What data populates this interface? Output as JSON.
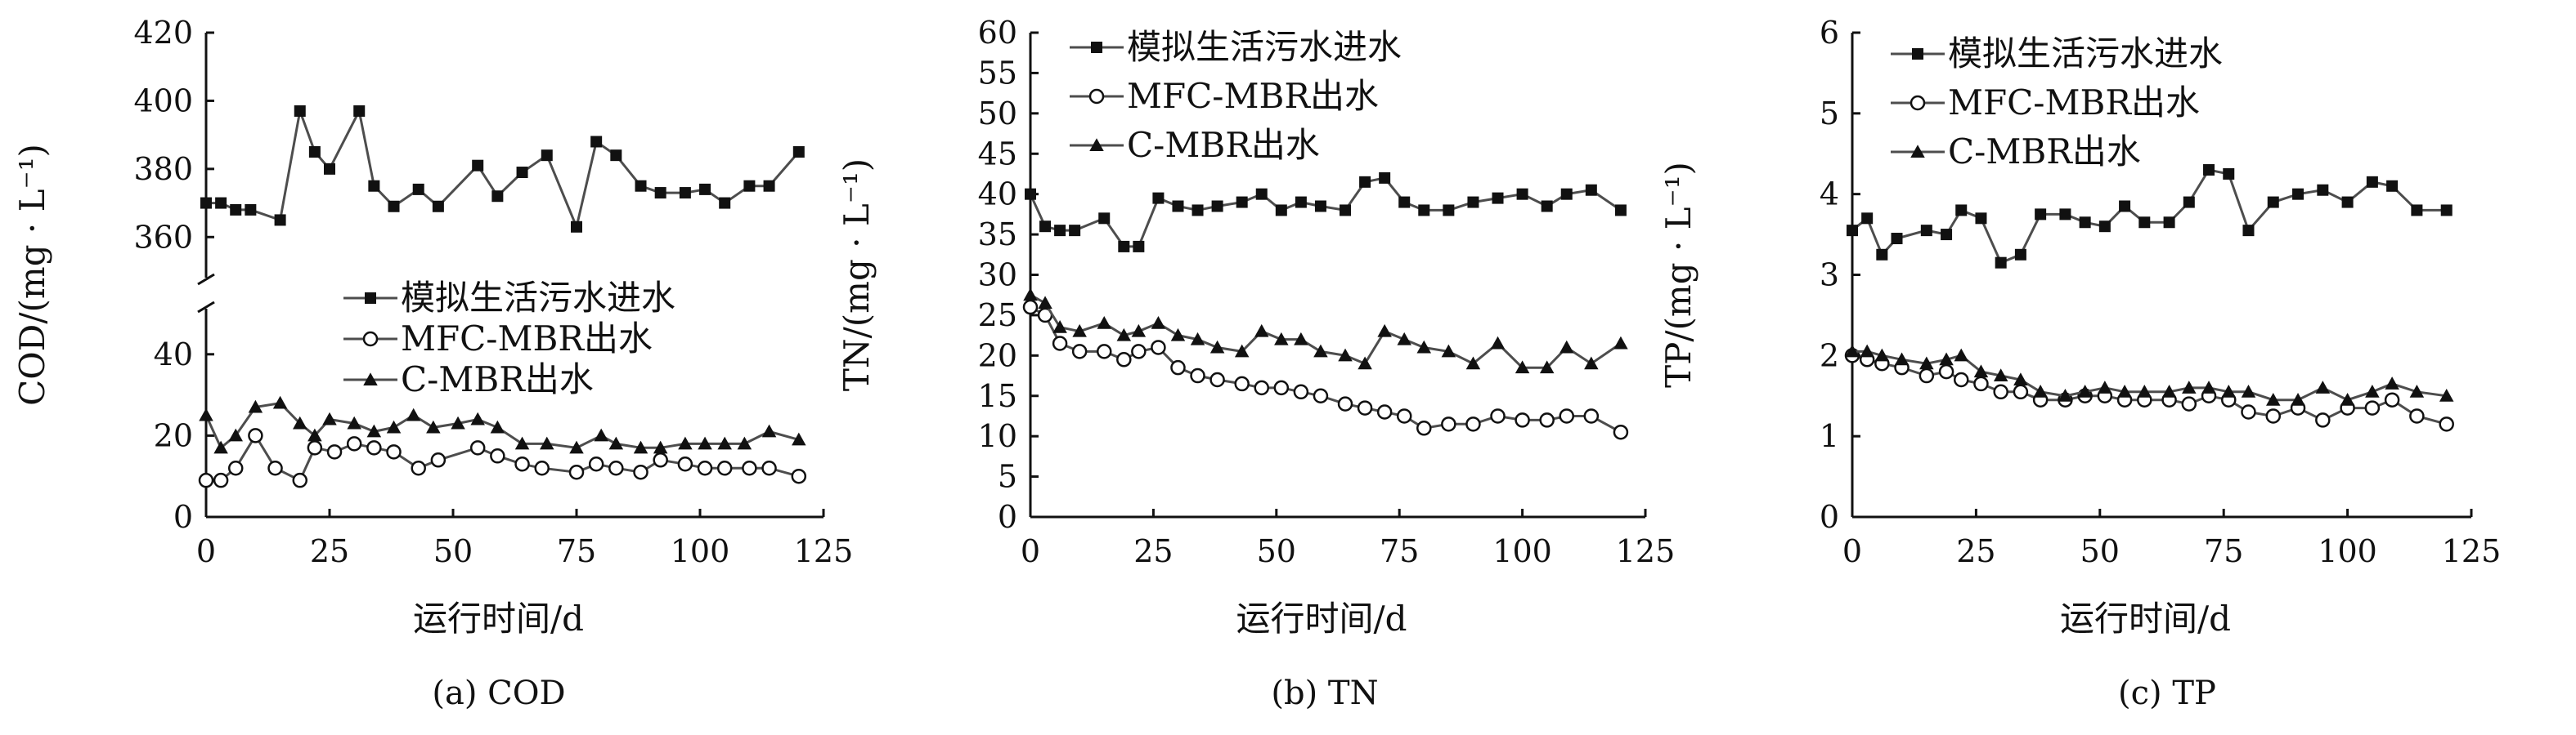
{
  "chart_data": [
    {
      "type": "line",
      "caption": "(a) COD",
      "xlabel": "运行时间/d",
      "ylabel": "COD/(mg · L⁻¹)",
      "xlim": [
        0,
        125
      ],
      "xticks": [
        "0",
        "25",
        "50",
        "75",
        "100",
        "125"
      ],
      "axis_break": true,
      "ylim_lower": [
        0,
        50
      ],
      "yticks_lower": [
        "0",
        "20",
        "40"
      ],
      "ylim_upper": [
        350,
        420
      ],
      "yticks_upper": [
        "360",
        "380",
        "400",
        "420"
      ],
      "legend_position": "inside-lower-middle",
      "series": [
        {
          "name": "模拟生活污水进水",
          "marker": "square",
          "x": [
            0,
            3,
            6,
            9,
            15,
            19,
            22,
            25,
            31,
            34,
            38,
            43,
            47,
            55,
            59,
            64,
            69,
            75,
            79,
            83,
            88,
            92,
            97,
            101,
            105,
            110,
            114,
            120
          ],
          "y": [
            370,
            370,
            368,
            368,
            365,
            397,
            385,
            380,
            397,
            375,
            369,
            374,
            369,
            381,
            372,
            379,
            384,
            363,
            388,
            384,
            375,
            373,
            373,
            374,
            370,
            375,
            375,
            385
          ]
        },
        {
          "name": "MFC-MBR出水",
          "marker": "circle",
          "x": [
            0,
            3,
            6,
            10,
            14,
            19,
            22,
            26,
            30,
            34,
            38,
            43,
            47,
            55,
            59,
            64,
            68,
            75,
            79,
            83,
            88,
            92,
            97,
            101,
            105,
            110,
            114,
            120
          ],
          "y": [
            9,
            9,
            12,
            20,
            12,
            9,
            17,
            16,
            18,
            17,
            16,
            12,
            14,
            17,
            15,
            13,
            12,
            11,
            13,
            12,
            11,
            14,
            13,
            12,
            12,
            12,
            12,
            10
          ]
        },
        {
          "name": "C-MBR出水",
          "marker": "triangle",
          "x": [
            0,
            3,
            6,
            10,
            15,
            19,
            22,
            25,
            30,
            34,
            38,
            42,
            46,
            51,
            55,
            59,
            64,
            69,
            75,
            80,
            83,
            88,
            92,
            97,
            101,
            105,
            109,
            114,
            120
          ],
          "y": [
            25,
            17,
            20,
            27,
            28,
            23,
            20,
            24,
            23,
            21,
            22,
            25,
            22,
            23,
            24,
            22,
            18,
            18,
            17,
            20,
            18,
            17,
            17,
            18,
            18,
            18,
            18,
            21,
            19
          ]
        }
      ]
    },
    {
      "type": "line",
      "caption": "(b) TN",
      "xlabel": "运行时间/d",
      "ylabel": "TN/(mg · L⁻¹)",
      "xlim": [
        0,
        125
      ],
      "xticks": [
        "0",
        "25",
        "50",
        "75",
        "100",
        "125"
      ],
      "ylim": [
        0,
        60
      ],
      "yticks": [
        "0",
        "5",
        "10",
        "15",
        "20",
        "25",
        "30",
        "35",
        "40",
        "45",
        "50",
        "55",
        "60"
      ],
      "legend_position": "top-left",
      "series": [
        {
          "name": "模拟生活污水进水",
          "marker": "square",
          "x": [
            0,
            3,
            6,
            9,
            15,
            19,
            22,
            26,
            30,
            34,
            38,
            43,
            47,
            51,
            55,
            59,
            64,
            68,
            72,
            76,
            80,
            85,
            90,
            95,
            100,
            105,
            109,
            114,
            120
          ],
          "y": [
            40,
            36,
            35.5,
            35.5,
            37,
            33.5,
            33.5,
            39.5,
            38.5,
            38,
            38.5,
            39,
            40,
            38,
            39,
            38.5,
            38,
            41.5,
            42,
            39,
            38,
            38,
            39,
            39.5,
            40,
            38.5,
            40,
            40.5,
            38
          ]
        },
        {
          "name": "MFC-MBR出水",
          "marker": "circle",
          "x": [
            0,
            3,
            6,
            10,
            15,
            19,
            22,
            26,
            30,
            34,
            38,
            43,
            47,
            51,
            55,
            59,
            64,
            68,
            72,
            76,
            80,
            85,
            90,
            95,
            100,
            105,
            109,
            114,
            120
          ],
          "y": [
            26,
            25,
            21.5,
            20.5,
            20.5,
            19.5,
            20.5,
            21,
            18.5,
            17.5,
            17,
            16.5,
            16,
            16,
            15.5,
            15,
            14,
            13.5,
            13,
            12.5,
            11,
            11.5,
            11.5,
            12.5,
            12,
            12,
            12.5,
            12.5,
            10.5
          ]
        },
        {
          "name": "C-MBR出水",
          "marker": "triangle",
          "x": [
            0,
            3,
            6,
            10,
            15,
            19,
            22,
            26,
            30,
            34,
            38,
            43,
            47,
            51,
            55,
            59,
            64,
            68,
            72,
            76,
            80,
            85,
            90,
            95,
            100,
            105,
            109,
            114,
            120
          ],
          "y": [
            27.5,
            26.5,
            23.5,
            23,
            24,
            22.5,
            23,
            24,
            22.5,
            22,
            21,
            20.5,
            23,
            22,
            22,
            20.5,
            20,
            19,
            23,
            22,
            21,
            20.5,
            19,
            21.5,
            18.5,
            18.5,
            21,
            19,
            21.5
          ]
        }
      ]
    },
    {
      "type": "line",
      "caption": "(c) TP",
      "xlabel": "运行时间/d",
      "ylabel": "TP/(mg · L⁻¹)",
      "xlim": [
        0,
        125
      ],
      "xticks": [
        "0",
        "25",
        "50",
        "75",
        "100",
        "125"
      ],
      "ylim": [
        0,
        6
      ],
      "yticks": [
        "0",
        "1",
        "2",
        "3",
        "4",
        "5",
        "6"
      ],
      "legend_position": "top-left",
      "series": [
        {
          "name": "模拟生活污水进水",
          "marker": "square",
          "x": [
            0,
            3,
            6,
            9,
            15,
            19,
            22,
            26,
            30,
            34,
            38,
            43,
            47,
            51,
            55,
            59,
            64,
            68,
            72,
            76,
            80,
            85,
            90,
            95,
            100,
            105,
            109,
            114,
            120
          ],
          "y": [
            3.55,
            3.7,
            3.25,
            3.45,
            3.55,
            3.5,
            3.8,
            3.7,
            3.15,
            3.25,
            3.75,
            3.75,
            3.65,
            3.6,
            3.85,
            3.65,
            3.65,
            3.9,
            4.3,
            4.25,
            3.55,
            3.9,
            4.0,
            4.05,
            3.9,
            4.15,
            4.1,
            3.8,
            3.8
          ]
        },
        {
          "name": "MFC-MBR出水",
          "marker": "circle",
          "x": [
            0,
            3,
            6,
            10,
            15,
            19,
            22,
            26,
            30,
            34,
            38,
            43,
            47,
            51,
            55,
            59,
            64,
            68,
            72,
            76,
            80,
            85,
            90,
            95,
            100,
            105,
            109,
            114,
            120
          ],
          "y": [
            2.0,
            1.95,
            1.9,
            1.85,
            1.75,
            1.8,
            1.7,
            1.65,
            1.55,
            1.55,
            1.45,
            1.45,
            1.5,
            1.5,
            1.45,
            1.45,
            1.45,
            1.4,
            1.5,
            1.45,
            1.3,
            1.25,
            1.35,
            1.2,
            1.35,
            1.35,
            1.45,
            1.25,
            1.15
          ]
        },
        {
          "name": "C-MBR出水",
          "marker": "triangle",
          "x": [
            0,
            3,
            6,
            10,
            15,
            19,
            22,
            26,
            30,
            34,
            38,
            43,
            47,
            51,
            55,
            59,
            64,
            68,
            72,
            76,
            80,
            85,
            90,
            95,
            100,
            105,
            109,
            114,
            120
          ],
          "y": [
            2.05,
            2.05,
            2.0,
            1.95,
            1.9,
            1.95,
            2.0,
            1.8,
            1.75,
            1.7,
            1.55,
            1.5,
            1.55,
            1.6,
            1.55,
            1.55,
            1.55,
            1.6,
            1.6,
            1.55,
            1.55,
            1.45,
            1.45,
            1.6,
            1.45,
            1.55,
            1.65,
            1.55,
            1.5
          ]
        }
      ]
    }
  ]
}
